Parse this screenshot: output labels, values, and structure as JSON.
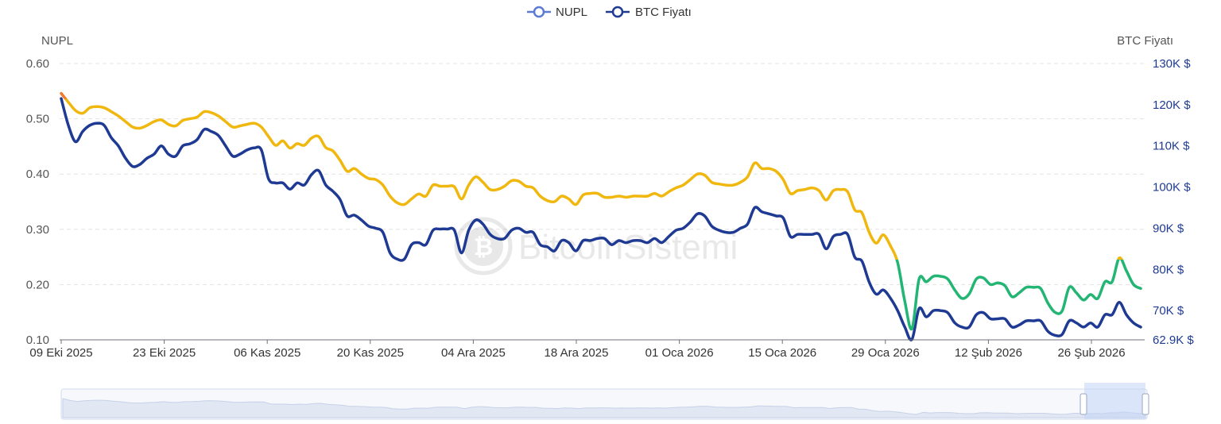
{
  "chart_data": {
    "type": "line",
    "legend": [
      "NUPL",
      "BTC Fiyatı"
    ],
    "left_axis": {
      "title": "NUPL",
      "ticks": [
        "0.10",
        "0.20",
        "0.30",
        "0.40",
        "0.50",
        "0.60"
      ],
      "range": [
        0.1,
        0.6
      ]
    },
    "right_axis": {
      "title": "BTC Fiyatı",
      "ticks": [
        62.9,
        70,
        80,
        90,
        100,
        110,
        120,
        130
      ],
      "tick_labels": [
        "62.9K $",
        "70K $",
        "80K $",
        "90K $",
        "100K $",
        "110K $",
        "120K $",
        "130K $"
      ],
      "range": [
        62.9,
        130
      ]
    },
    "x_tick_labels": [
      "09 Eki 2025",
      "23 Eki 2025",
      "06 Kas 2025",
      "20 Kas 2025",
      "04 Ara 2025",
      "18 Ara 2025",
      "01 Oca 2026",
      "15 Oca 2026",
      "29 Oca 2026",
      "12 Şub 2026",
      "26 Şub 2026"
    ],
    "nupl_zone_colors": {
      "high": "#f07a2e",
      "mid": "#f0b70f",
      "low": "#22b573"
    },
    "btc_color": "#1f3a93",
    "series": [
      {
        "name": "NUPL",
        "values": [
          0.546,
          0.53,
          0.515,
          0.51,
          0.52,
          0.522,
          0.52,
          0.513,
          0.505,
          0.495,
          0.485,
          0.483,
          0.488,
          0.495,
          0.498,
          0.49,
          0.487,
          0.497,
          0.5,
          0.503,
          0.513,
          0.511,
          0.505,
          0.495,
          0.485,
          0.487,
          0.49,
          0.492,
          0.485,
          0.468,
          0.452,
          0.46,
          0.447,
          0.455,
          0.452,
          0.465,
          0.468,
          0.448,
          0.442,
          0.425,
          0.405,
          0.41,
          0.4,
          0.392,
          0.39,
          0.38,
          0.36,
          0.348,
          0.345,
          0.355,
          0.364,
          0.36,
          0.38,
          0.378,
          0.378,
          0.377,
          0.355,
          0.38,
          0.395,
          0.385,
          0.372,
          0.372,
          0.378,
          0.388,
          0.387,
          0.378,
          0.375,
          0.36,
          0.352,
          0.35,
          0.36,
          0.355,
          0.345,
          0.362,
          0.365,
          0.365,
          0.358,
          0.358,
          0.36,
          0.358,
          0.36,
          0.36,
          0.36,
          0.365,
          0.36,
          0.368,
          0.375,
          0.38,
          0.39,
          0.4,
          0.398,
          0.385,
          0.382,
          0.38,
          0.38,
          0.385,
          0.395,
          0.42,
          0.41,
          0.41,
          0.405,
          0.39,
          0.365,
          0.37,
          0.372,
          0.375,
          0.37,
          0.353,
          0.37,
          0.372,
          0.368,
          0.335,
          0.33,
          0.295,
          0.275,
          0.29,
          0.27,
          0.24,
          0.17,
          0.12,
          0.21,
          0.205,
          0.215,
          0.215,
          0.21,
          0.19,
          0.175,
          0.183,
          0.21,
          0.212,
          0.2,
          0.203,
          0.198,
          0.178,
          0.185,
          0.195,
          0.195,
          0.193,
          0.167,
          0.15,
          0.152,
          0.195,
          0.185,
          0.172,
          0.182,
          0.175,
          0.205,
          0.205,
          0.248,
          0.225,
          0.2,
          0.193
        ]
      },
      {
        "name": "BTC Fiyatı",
        "values": [
          121.5,
          115,
          111,
          113.5,
          115,
          115.5,
          115,
          112,
          110,
          107,
          105,
          105.5,
          107,
          108,
          110,
          108,
          107.5,
          110,
          110.5,
          111.5,
          114,
          113.5,
          112.5,
          110,
          107.5,
          108,
          109,
          109.5,
          109,
          102,
          101,
          101,
          99.5,
          101,
          100.5,
          103,
          104,
          100.5,
          99,
          97,
          93,
          93.2,
          92,
          90.5,
          90,
          89,
          84,
          82.5,
          82.5,
          86,
          86.5,
          86,
          89.5,
          89.8,
          89.8,
          89.5,
          84,
          89.5,
          92,
          91,
          88.5,
          87.5,
          87.5,
          89.5,
          90,
          89,
          89,
          86,
          85.5,
          84.5,
          87,
          86.5,
          84.5,
          87,
          87,
          87.5,
          87.5,
          86,
          87,
          86.5,
          87,
          87,
          86.5,
          87.5,
          86.5,
          88,
          89.5,
          90,
          91.5,
          93.5,
          93,
          90.5,
          89.5,
          89,
          89,
          90,
          91,
          95,
          94,
          93.5,
          93,
          92.5,
          88,
          88.5,
          88.5,
          88.5,
          88.5,
          85,
          88,
          88.5,
          88.5,
          83,
          82,
          77,
          74,
          75,
          73,
          70,
          66,
          63,
          70.5,
          68.5,
          70,
          70,
          69.5,
          67,
          66,
          66,
          69,
          69.5,
          68,
          68,
          68,
          66,
          66.5,
          67.5,
          67.5,
          67.5,
          65,
          64,
          64.2,
          67.5,
          67,
          66,
          67,
          66,
          69,
          69,
          72,
          69,
          67,
          66
        ]
      }
    ]
  }
}
